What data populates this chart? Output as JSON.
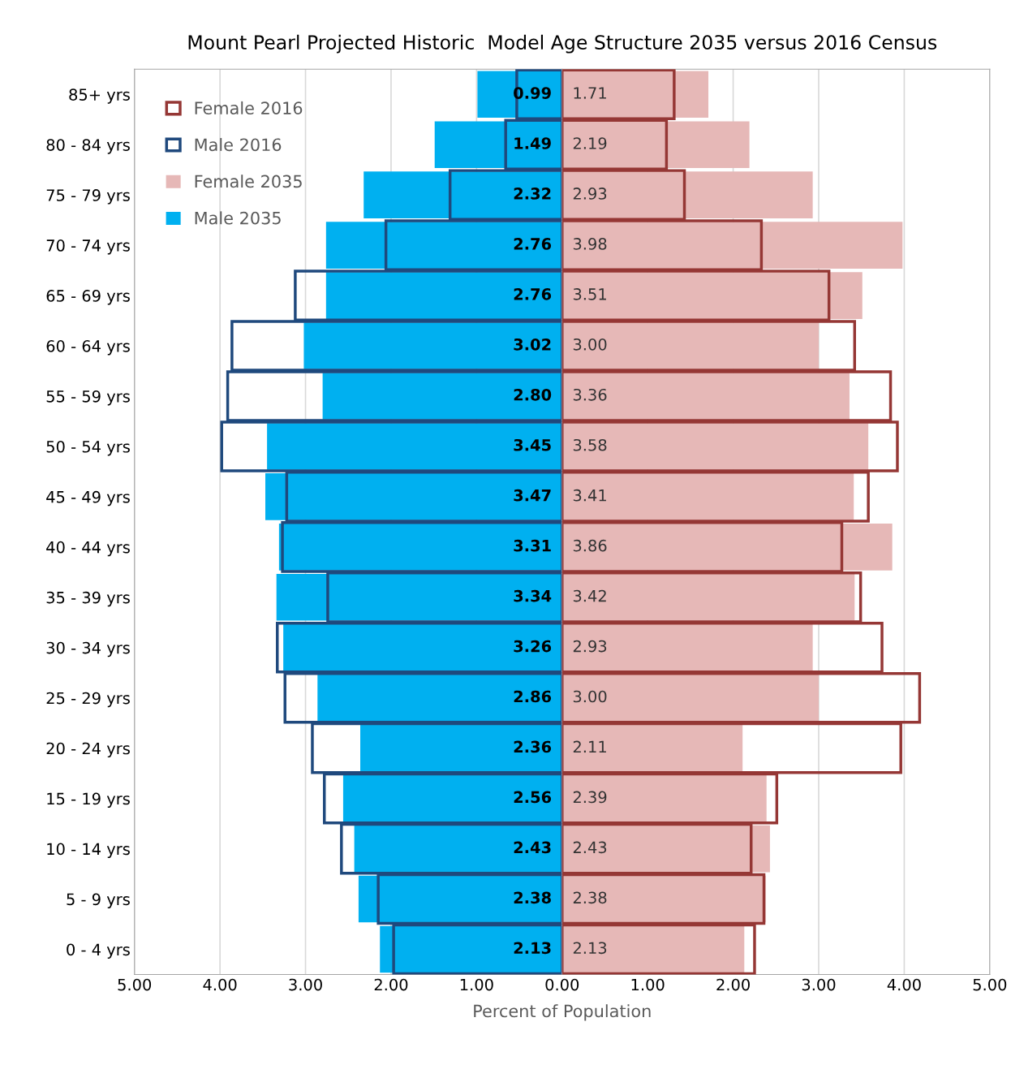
{
  "chart_data": [
    {
      "type": "bar",
      "orientation": "horizontal",
      "title": "Mount Pearl Projected Historic  Model Age Structure 2035 versus 2016 Census",
      "xlabel": "Percent of Population",
      "categories": [
        "85+ yrs",
        "80 - 84 yrs",
        "75 - 79 yrs",
        "70 - 74 yrs",
        "65 - 69 yrs",
        "60 - 64 yrs",
        "55 - 59 yrs",
        "50 - 54 yrs",
        "45 - 49 yrs",
        "40 - 44 yrs",
        "35 - 39 yrs",
        "30 - 34 yrs",
        "25 - 29 yrs",
        "20 - 24 yrs",
        "15 - 19 yrs",
        "10 - 14 yrs",
        "5 - 9 yrs",
        "0 - 4 yrs"
      ],
      "series": [
        {
          "name": "Male 2016",
          "color": "#1f497d",
          "line_style": "solid",
          "values": [
            0.53,
            0.66,
            1.31,
            2.06,
            3.12,
            3.86,
            3.91,
            3.98,
            3.22,
            3.27,
            2.74,
            3.33,
            3.24,
            2.92,
            2.78,
            2.58,
            2.15,
            1.97
          ]
        },
        {
          "name": "Male 2035",
          "color": "#00b0f0",
          "values": [
            0.99,
            1.49,
            2.32,
            2.76,
            2.76,
            3.02,
            2.8,
            3.45,
            3.47,
            3.31,
            3.34,
            3.26,
            2.86,
            2.36,
            2.56,
            2.43,
            2.38,
            2.13
          ],
          "value_labels": [
            "0.99",
            "1.49",
            "2.32",
            "2.76",
            "2.76",
            "3.02",
            "2.80",
            "3.45",
            "3.47",
            "3.31",
            "3.34",
            "3.26",
            "2.86",
            "2.36",
            "2.56",
            "2.43",
            "2.38",
            "2.13"
          ]
        }
      ],
      "xlim": [
        5,
        0
      ],
      "xticks": [
        {
          "value": 5,
          "label": "5.00"
        },
        {
          "value": 4,
          "label": "4.00"
        },
        {
          "value": 3,
          "label": "3.00"
        },
        {
          "value": 2,
          "label": "2.00"
        },
        {
          "value": 1,
          "label": "1.00"
        }
      ],
      "grid": "x",
      "legend": "top left"
    },
    {
      "type": "bar",
      "orientation": "horizontal",
      "categories": [
        null,
        null,
        null,
        null,
        null,
        null,
        null,
        null,
        null,
        null,
        null,
        null,
        null,
        null,
        null,
        null,
        null,
        null
      ],
      "series": [
        {
          "name": "Female 2016",
          "color": "#953735",
          "line_style": "solid",
          "values": [
            1.31,
            1.22,
            1.43,
            2.33,
            3.12,
            3.42,
            3.84,
            3.92,
            3.58,
            3.27,
            3.49,
            3.74,
            4.18,
            3.96,
            2.51,
            2.21,
            2.36,
            2.25
          ]
        },
        {
          "name": "Female 2035",
          "color": "#e6b8b7",
          "values": [
            1.71,
            2.19,
            2.93,
            3.98,
            3.51,
            3.0,
            3.36,
            3.58,
            3.41,
            3.86,
            3.42,
            2.93,
            3.0,
            2.11,
            2.39,
            2.43,
            2.38,
            2.13
          ],
          "value_labels": [
            "1.71",
            "2.19",
            "2.93",
            "3.98",
            "3.51",
            "3.00",
            "3.36",
            "3.58",
            "3.41",
            "3.86",
            "3.42",
            "2.93",
            "3.00",
            "2.11",
            "2.39",
            "2.43",
            "2.38",
            "2.13"
          ]
        }
      ],
      "xlim": [
        0,
        5
      ],
      "xticks": [
        {
          "value": 0,
          "label": "0.00"
        },
        {
          "value": 1,
          "label": "1.00"
        },
        {
          "value": 2,
          "label": "2.00"
        },
        {
          "value": 3,
          "label": "3.00"
        },
        {
          "value": 4,
          "label": "4.00"
        },
        {
          "value": 5,
          "label": "5.00"
        }
      ],
      "grid": "x",
      "legend": "top left"
    }
  ]
}
